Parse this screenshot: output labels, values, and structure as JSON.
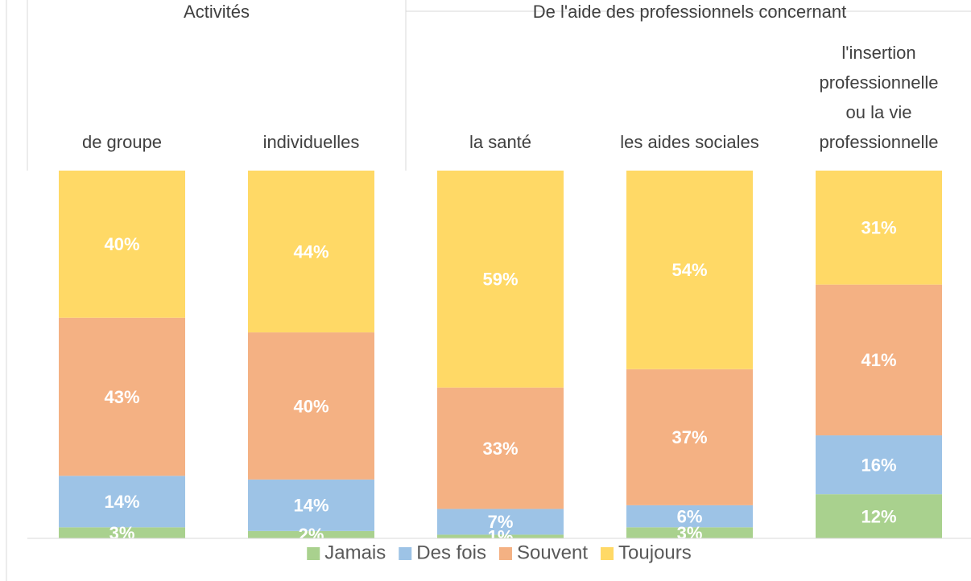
{
  "chart_data": {
    "type": "stacked_bar",
    "groups": [
      {
        "label": "Activités",
        "categories": [
          0,
          1
        ]
      },
      {
        "label": "De l'aide des professionnels concernant",
        "categories": [
          2,
          3,
          4
        ]
      }
    ],
    "categories": [
      "de groupe",
      "individuelles",
      "la santé",
      "les aides sociales",
      "l'insertion\nprofessionnelle\nou la vie\nprofessionnelle"
    ],
    "ylim": [
      0,
      100
    ],
    "series": [
      {
        "name": "Jamais",
        "color": "#a9d18e",
        "values": [
          3,
          2,
          1,
          3,
          12
        ],
        "value_labels": [
          "3%",
          "2%",
          "1%",
          "3%",
          "12%"
        ]
      },
      {
        "name": "Des fois",
        "color": "#9dc3e6",
        "values": [
          14,
          14,
          7,
          6,
          16
        ],
        "value_labels": [
          "14%",
          "14%",
          "7%",
          "6%",
          "16%"
        ]
      },
      {
        "name": "Souvent",
        "color": "#f4b183",
        "values": [
          43,
          40,
          33,
          37,
          41
        ],
        "value_labels": [
          "43%",
          "40%",
          "33%",
          "37%",
          "41%"
        ]
      },
      {
        "name": "Toujours",
        "color": "#ffd966",
        "values": [
          40,
          44,
          59,
          54,
          31
        ],
        "value_labels": [
          "40%",
          "44%",
          "59%",
          "54%",
          "31%"
        ]
      }
    ],
    "legend": "bottom"
  }
}
